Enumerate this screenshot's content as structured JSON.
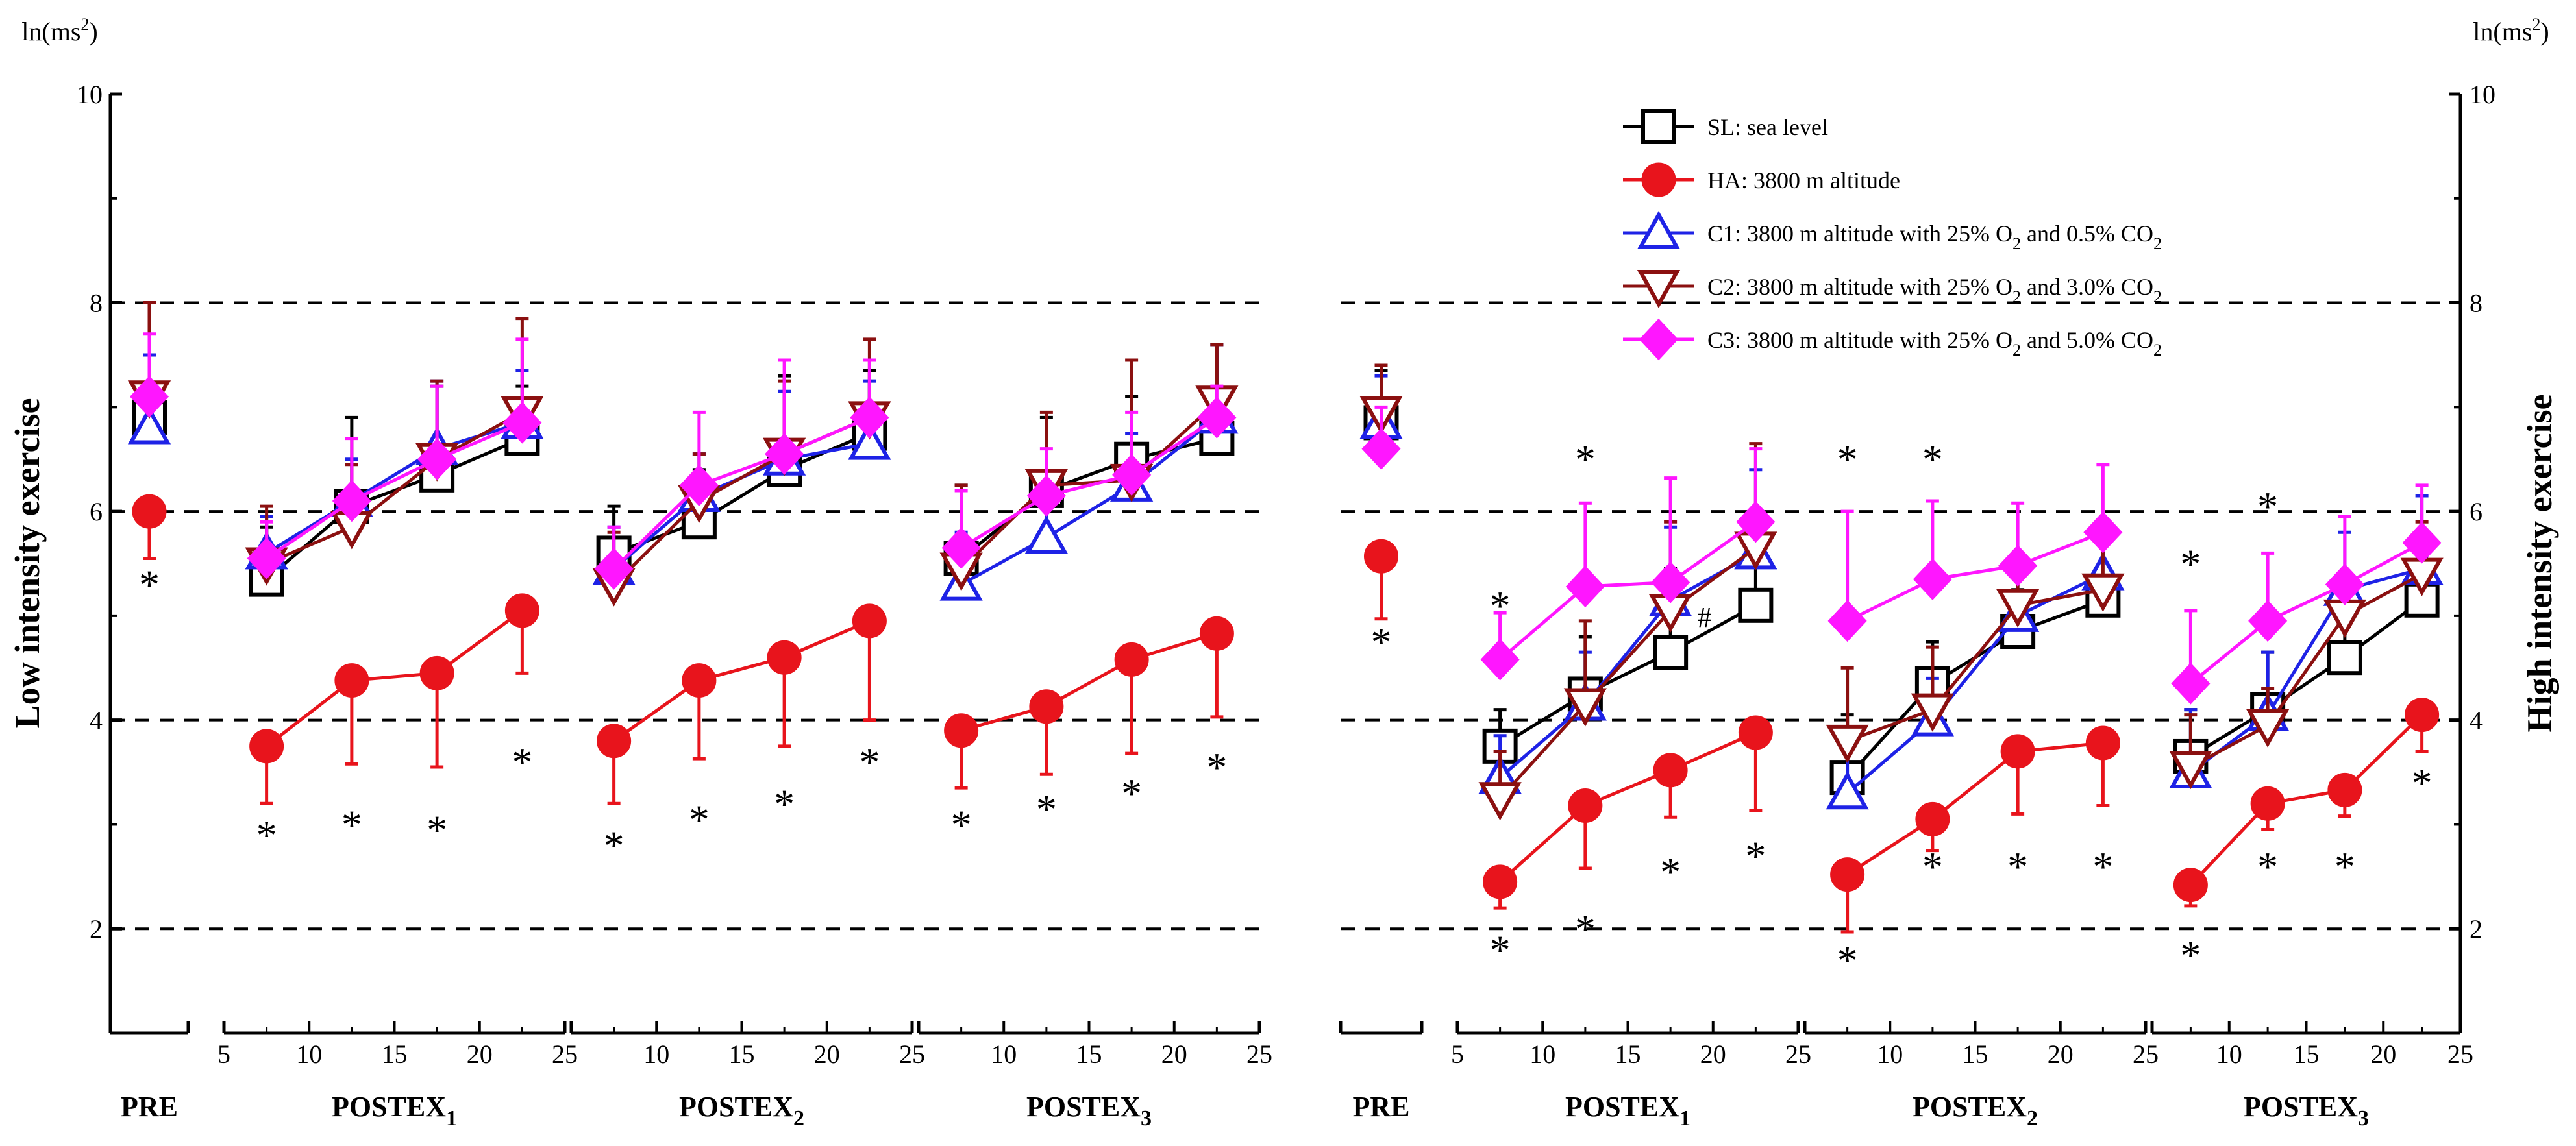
{
  "chart_data": {
    "type": "line",
    "y_unit_left": "ln(ms",
    "y_unit_right": "ln(ms",
    "y_unit_sup": "2",
    "y_unit_close": ")",
    "ylabel_left": "Low intensity exercise",
    "ylabel_right": "High intensity exercise",
    "ylim": [
      1,
      10
    ],
    "yticks": [
      2,
      4,
      6,
      8,
      10
    ],
    "grid_dashed_at": [
      2,
      4,
      6,
      8
    ],
    "xticks": [
      5,
      10,
      15,
      20,
      25
    ],
    "legend": [
      {
        "key": "SL",
        "label": "SL: sea level",
        "color": "#000000",
        "marker": "square"
      },
      {
        "key": "HA",
        "label": "HA: 3800 m altitude",
        "color": "#e8141c",
        "marker": "circle"
      },
      {
        "key": "C1",
        "label": "C1: 3800 m altitude with 25% O",
        "sub": "2",
        "tail": " and 0.5% CO",
        "sub2": "2",
        "color": "#1e22e6",
        "marker": "triangle-up"
      },
      {
        "key": "C2",
        "label": "C2: 3800 m altitude with 25% O",
        "sub": "2",
        "tail": " and 3.0% CO",
        "sub2": "2",
        "color": "#8b1010",
        "marker": "triangle-down"
      },
      {
        "key": "C3",
        "label": "C3: 3800 m altitude with 25% O",
        "sub": "2",
        "tail": " and 5.0% CO",
        "sub2": "2",
        "color": "#ff16ff",
        "marker": "diamond"
      }
    ],
    "panels": [
      {
        "name": "low",
        "pre": {
          "label": "PRE",
          "values": {
            "SL": 6.9,
            "HA": 6.0,
            "C1": 6.8,
            "C2": 7.1,
            "C3": 7.1
          },
          "err": {
            "SL": 0.6,
            "HA": 0.45,
            "C1": 0.7,
            "C2": 0.9,
            "C3": 0.6
          },
          "stars": [
            {
              "x": 0,
              "y": 5.3
            }
          ]
        },
        "segments": [
          {
            "label": "POSTEX",
            "sub": "1",
            "x": [
              7.5,
              12.5,
              17.5,
              22.5
            ],
            "series": {
              "SL": [
                5.35,
                6.05,
                6.35,
                6.7
              ],
              "HA": [
                3.75,
                4.38,
                4.45,
                5.05
              ],
              "C1": [
                5.6,
                6.1,
                6.6,
                6.85
              ],
              "C2": [
                5.5,
                5.85,
                6.5,
                6.95
              ],
              "C3": [
                5.55,
                6.1,
                6.5,
                6.85
              ]
            },
            "err": {
              "SL": [
                0.5,
                0.85,
                0.85,
                0.5
              ],
              "HA": [
                0.55,
                0.8,
                0.9,
                0.6
              ],
              "C1": [
                0.35,
                0.4,
                0.65,
                0.5
              ],
              "C2": [
                0.55,
                0.6,
                0.75,
                0.9
              ],
              "C3": [
                0.35,
                0.6,
                0.7,
                0.8
              ]
            },
            "stars": [
              {
                "x": 7.5,
                "y": 2.9
              },
              {
                "x": 12.5,
                "y": 3.0
              },
              {
                "x": 17.5,
                "y": 2.95
              },
              {
                "x": 22.5,
                "y": 3.6
              }
            ]
          },
          {
            "label": "POSTEX",
            "sub": "2",
            "x": [
              7.5,
              12.5,
              17.5,
              22.5
            ],
            "series": {
              "SL": [
                5.6,
                5.9,
                6.4,
                6.75
              ],
              "HA": [
                3.8,
                4.38,
                4.6,
                4.95
              ],
              "C1": [
                5.45,
                6.15,
                6.5,
                6.65
              ],
              "C2": [
                5.3,
                6.1,
                6.55,
                6.9
              ],
              "C3": [
                5.45,
                6.25,
                6.55,
                6.9
              ]
            },
            "err": {
              "SL": [
                0.45,
                0.5,
                0.9,
                0.6
              ],
              "HA": [
                0.6,
                0.75,
                0.85,
                0.95
              ],
              "C1": [
                0.4,
                0.4,
                0.65,
                0.6
              ],
              "C2": [
                0.5,
                0.45,
                0.7,
                0.75
              ],
              "C3": [
                0.4,
                0.7,
                0.9,
                0.55
              ]
            },
            "stars": [
              {
                "x": 7.5,
                "y": 2.8
              },
              {
                "x": 12.5,
                "y": 3.05
              },
              {
                "x": 17.5,
                "y": 3.2
              },
              {
                "x": 22.5,
                "y": 3.6
              }
            ]
          },
          {
            "label": "POSTEX",
            "sub": "3",
            "x": [
              7.5,
              12.5,
              17.5,
              22.5
            ],
            "series": {
              "SL": [
                5.55,
                6.2,
                6.5,
                6.7
              ],
              "HA": [
                3.9,
                4.13,
                4.58,
                4.83
              ],
              "C1": [
                5.3,
                5.75,
                6.25,
                6.9
              ],
              "C2": [
                5.45,
                6.25,
                6.3,
                7.05
              ],
              "C3": [
                5.65,
                6.15,
                6.35,
                6.9
              ]
            },
            "err": {
              "SL": [
                0.7,
                0.7,
                0.6,
                0.9
              ],
              "HA": [
                0.55,
                0.65,
                0.9,
                0.8
              ],
              "C1": [
                0.5,
                0.45,
                0.5,
                0.7
              ],
              "C2": [
                0.8,
                0.7,
                1.15,
                0.55
              ],
              "C3": [
                0.55,
                0.45,
                0.6,
                0.3
              ]
            },
            "stars": [
              {
                "x": 7.5,
                "y": 3.0
              },
              {
                "x": 12.5,
                "y": 3.15
              },
              {
                "x": 17.5,
                "y": 3.3
              },
              {
                "x": 22.5,
                "y": 3.55
              }
            ]
          }
        ]
      },
      {
        "name": "high",
        "pre": {
          "label": "PRE",
          "values": {
            "SL": 6.85,
            "HA": 5.57,
            "C1": 6.85,
            "C2": 6.95,
            "C3": 6.6
          },
          "err": {
            "SL": 0.5,
            "HA": 0.6,
            "C1": 0.45,
            "C2": 0.45,
            "C3": 0.4
          },
          "stars": [
            {
              "x": 0,
              "y": 4.75
            }
          ]
        },
        "segments": [
          {
            "label": "POSTEX",
            "sub": "1",
            "x": [
              7.5,
              12.5,
              17.5,
              22.5
            ],
            "series": {
              "SL": [
                3.75,
                4.25,
                4.65,
                5.1
              ],
              "HA": [
                2.45,
                3.18,
                3.52,
                3.88
              ],
              "C1": [
                3.45,
                4.15,
                5.15,
                5.6
              ],
              "C2": [
                3.25,
                4.15,
                5.05,
                5.65
              ],
              "C3": [
                4.58,
                5.28,
                5.32,
                5.9
              ]
            },
            "err": {
              "SL": [
                0.35,
                0.55,
                0.8,
                0.55
              ],
              "HA": [
                0.25,
                0.6,
                0.45,
                0.75
              ],
              "C1": [
                0.4,
                0.5,
                0.7,
                0.8
              ],
              "C2": [
                0.45,
                0.8,
                0.85,
                1.0
              ],
              "C3": [
                0.45,
                0.8,
                1.0,
                0.7
              ]
            },
            "stars": [
              {
                "x": 7.5,
                "y": 5.1
              },
              {
                "x": 12.5,
                "y": 6.5
              },
              {
                "x": 17.5,
                "y": 2.55
              },
              {
                "x": 22.5,
                "y": 2.7
              },
              {
                "x": 7.5,
                "y": 1.8
              },
              {
                "x": 12.5,
                "y": 2.0
              }
            ],
            "hash": {
              "x": 19.5,
              "y": 4.98,
              "text": "#"
            }
          },
          {
            "label": "POSTEX",
            "sub": "2",
            "x": [
              7.5,
              12.5,
              17.5,
              22.5
            ],
            "series": {
              "SL": [
                3.45,
                4.35,
                4.85,
                5.15
              ],
              "HA": [
                2.52,
                3.05,
                3.7,
                3.78
              ],
              "C1": [
                3.3,
                4.0,
                5.0,
                5.4
              ],
              "C2": [
                3.8,
                4.1,
                5.1,
                5.25
              ],
              "C3": [
                4.95,
                5.35,
                5.48,
                5.8
              ]
            },
            "err": {
              "SL": [
                0.6,
                0.4,
                0.4,
                0.75
              ],
              "HA": [
                0.55,
                0.3,
                0.6,
                0.6
              ],
              "C1": [
                0.5,
                0.4,
                0.55,
                0.5
              ],
              "C2": [
                0.7,
                0.6,
                0.5,
                0.6
              ],
              "C3": [
                1.05,
                0.75,
                0.6,
                0.65
              ]
            },
            "stars": [
              {
                "x": 7.5,
                "y": 6.5
              },
              {
                "x": 12.5,
                "y": 6.5
              },
              {
                "x": 12.5,
                "y": 2.6
              },
              {
                "x": 17.5,
                "y": 2.6
              },
              {
                "x": 22.5,
                "y": 2.6
              },
              {
                "x": 7.5,
                "y": 1.7
              }
            ]
          },
          {
            "label": "POSTEX",
            "sub": "3",
            "x": [
              7.5,
              12.5,
              17.5,
              22.5
            ],
            "series": {
              "SL": [
                3.65,
                4.1,
                4.6,
                5.15
              ],
              "HA": [
                2.42,
                3.2,
                3.33,
                4.05
              ],
              "C1": [
                3.5,
                4.05,
                5.25,
                5.45
              ],
              "C2": [
                3.55,
                3.95,
                5.0,
                5.4
              ],
              "C3": [
                4.35,
                4.95,
                5.3,
                5.7
              ]
            },
            "err": {
              "SL": [
                0.45,
                0.55,
                0.6,
                0.6
              ],
              "HA": [
                0.2,
                0.25,
                0.25,
                0.35
              ],
              "C1": [
                0.6,
                0.6,
                0.55,
                0.7
              ],
              "C2": [
                0.5,
                0.35,
                0.4,
                0.5
              ],
              "C3": [
                0.7,
                0.65,
                0.65,
                0.55
              ]
            },
            "stars": [
              {
                "x": 7.5,
                "y": 5.5
              },
              {
                "x": 12.5,
                "y": 6.05
              },
              {
                "x": 12.5,
                "y": 2.6
              },
              {
                "x": 17.5,
                "y": 2.6
              },
              {
                "x": 22.5,
                "y": 3.4
              },
              {
                "x": 7.5,
                "y": 1.75
              }
            ]
          }
        ]
      }
    ]
  }
}
